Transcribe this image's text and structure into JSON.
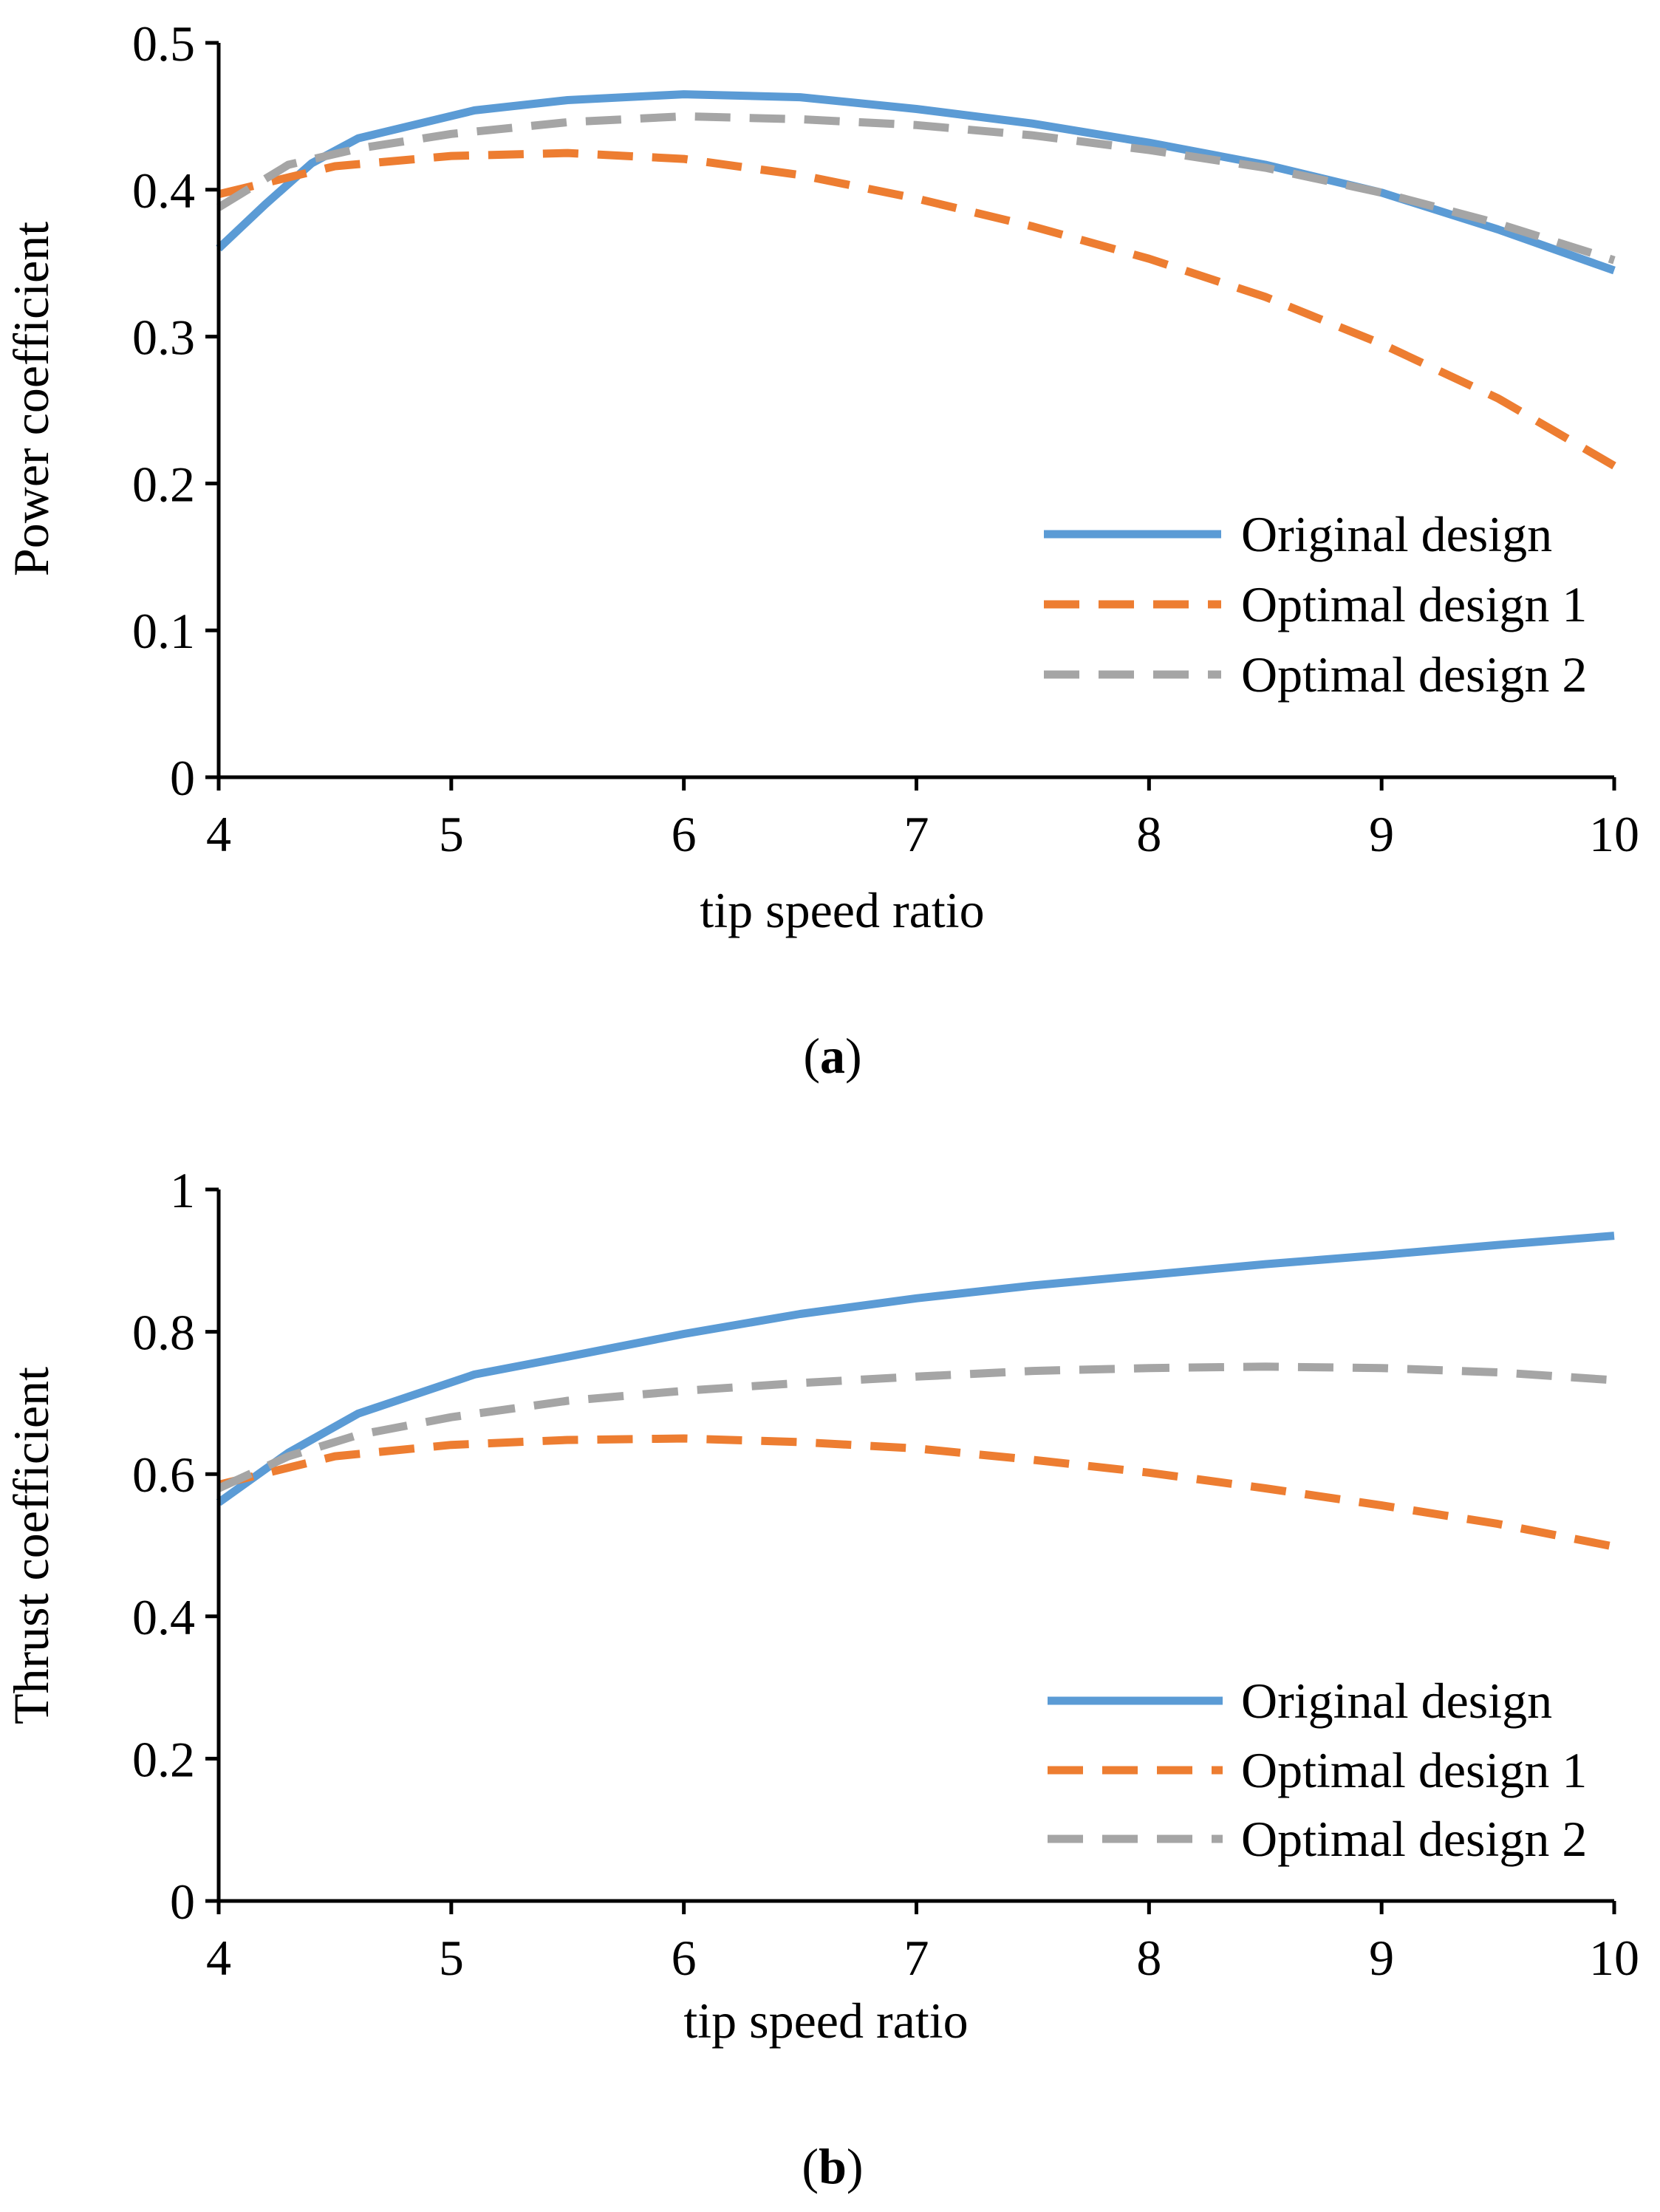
{
  "colors": {
    "original": "#5b9bd5",
    "optimal1": "#ed7d31",
    "optimal2": "#a5a5a5",
    "axis": "#000000"
  },
  "chart_data": [
    {
      "type": "line",
      "panel_label": "a",
      "xlabel": "tip speed ratio",
      "ylabel": "Power coefficient",
      "xlim": [
        4,
        10
      ],
      "ylim": [
        0,
        0.5
      ],
      "x_ticks": [
        4,
        5,
        6,
        7,
        8,
        9,
        10
      ],
      "x_tick_labels": [
        "4",
        "5",
        "6",
        "7",
        "8",
        "9",
        "10"
      ],
      "y_ticks": [
        0,
        0.1,
        0.2,
        0.3,
        0.4,
        0.5
      ],
      "y_tick_labels": [
        "0",
        "0.1",
        "0.2",
        "0.3",
        "0.4",
        "0.5"
      ],
      "legend_position": "bottom-right",
      "series": [
        {
          "name": "Original design",
          "style": "solid",
          "color": "#5b9bd5",
          "x": [
            4,
            4.2,
            4.4,
            4.6,
            5.1,
            5.5,
            6,
            6.5,
            7,
            7.5,
            8,
            8.5,
            9,
            9.5,
            10
          ],
          "y": [
            0.36,
            0.39,
            0.418,
            0.435,
            0.454,
            0.461,
            0.465,
            0.463,
            0.455,
            0.445,
            0.432,
            0.417,
            0.398,
            0.373,
            0.345
          ]
        },
        {
          "name": "Optimal design 1",
          "style": "dashed",
          "color": "#ed7d31",
          "x": [
            4,
            4.5,
            5,
            5.5,
            6,
            6.5,
            7,
            7.5,
            8,
            8.5,
            9,
            9.5,
            10
          ],
          "y": [
            0.397,
            0.416,
            0.423,
            0.425,
            0.421,
            0.41,
            0.394,
            0.375,
            0.353,
            0.327,
            0.295,
            0.258,
            0.212
          ]
        },
        {
          "name": "Optimal design 2",
          "style": "dashed",
          "color": "#a5a5a5",
          "x": [
            4,
            4.3,
            4.6,
            5,
            5.5,
            6,
            6.5,
            7,
            7.5,
            8,
            8.5,
            9,
            9.5,
            10
          ],
          "y": [
            0.388,
            0.417,
            0.428,
            0.438,
            0.446,
            0.45,
            0.448,
            0.444,
            0.437,
            0.427,
            0.415,
            0.398,
            0.377,
            0.352
          ]
        }
      ]
    },
    {
      "type": "line",
      "panel_label": "b",
      "xlabel": "tip speed ratio",
      "ylabel": "Thrust coefficient",
      "xlim": [
        4,
        10
      ],
      "ylim": [
        0,
        1
      ],
      "x_ticks": [
        4,
        5,
        6,
        7,
        8,
        9,
        10
      ],
      "x_tick_labels": [
        "4",
        "5",
        "6",
        "7",
        "8",
        "9",
        "10"
      ],
      "y_ticks": [
        0,
        0.2,
        0.4,
        0.6,
        0.8,
        1
      ],
      "y_tick_labels": [
        "0",
        "0.2",
        "0.4",
        "0.6",
        "0.8",
        "1"
      ],
      "legend_position": "bottom-right",
      "series": [
        {
          "name": "Original design",
          "style": "solid",
          "color": "#5b9bd5",
          "x": [
            4,
            4.3,
            4.6,
            5.1,
            5.5,
            6,
            6.5,
            7,
            7.5,
            8,
            8.5,
            9,
            9.5,
            10
          ],
          "y": [
            0.56,
            0.63,
            0.685,
            0.74,
            0.765,
            0.797,
            0.825,
            0.847,
            0.865,
            0.88,
            0.895,
            0.908,
            0.922,
            0.935
          ]
        },
        {
          "name": "Optimal design 1",
          "style": "dashed",
          "color": "#ed7d31",
          "x": [
            4,
            4.5,
            5,
            5.5,
            6,
            6.5,
            7,
            7.5,
            8,
            8.5,
            9,
            9.5,
            10
          ],
          "y": [
            0.585,
            0.625,
            0.641,
            0.648,
            0.65,
            0.645,
            0.636,
            0.62,
            0.602,
            0.58,
            0.556,
            0.53,
            0.498
          ]
        },
        {
          "name": "Optimal design 2",
          "style": "dashed",
          "color": "#a5a5a5",
          "x": [
            4,
            4.3,
            4.6,
            5,
            5.5,
            6,
            6.5,
            7,
            7.5,
            8,
            8.5,
            9,
            9.5,
            10
          ],
          "y": [
            0.58,
            0.625,
            0.655,
            0.68,
            0.703,
            0.717,
            0.728,
            0.737,
            0.745,
            0.749,
            0.751,
            0.749,
            0.743,
            0.732
          ]
        }
      ]
    }
  ]
}
